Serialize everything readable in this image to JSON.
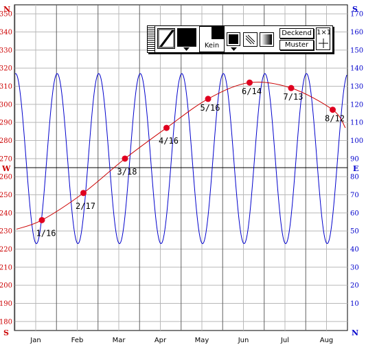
{
  "chart_data": {
    "type": "line",
    "left_axis": {
      "ticks": [
        "350",
        "340",
        "330",
        "320",
        "310",
        "300",
        "290",
        "280",
        "270",
        "260",
        "250",
        "240",
        "230",
        "220",
        "210",
        "200",
        "190",
        "180"
      ],
      "range": [
        175,
        355
      ],
      "top_label": "N",
      "bottom_label": "S",
      "middle_label": "W",
      "middle_value": 265,
      "color": "#cc0000"
    },
    "right_axis": {
      "ticks": [
        "170",
        "160",
        "150",
        "140",
        "130",
        "120",
        "110",
        "100",
        "90",
        "80",
        "70",
        "60",
        "50",
        "40",
        "30",
        "20",
        "10"
      ],
      "range": [
        -5,
        175
      ],
      "top_label": "S",
      "bottom_label": "N",
      "middle_label": "E",
      "color": "#0000cc"
    },
    "months": [
      "Jan",
      "Feb",
      "Mar",
      "Apr",
      "May",
      "Jun",
      "Jul",
      "Aug"
    ],
    "series": [
      {
        "color": "#cc0000",
        "axis": "left",
        "points": [
          {
            "label": "1/16",
            "value": 236
          },
          {
            "label": "2/17",
            "value": 251
          },
          {
            "label": "3/18",
            "value": 270
          },
          {
            "label": "4/16",
            "value": 287
          },
          {
            "label": "5/16",
            "value": 303
          },
          {
            "label": "6/14",
            "value": 312
          },
          {
            "label": "7/13",
            "value": 309
          },
          {
            "label": "8/12",
            "value": 297
          }
        ],
        "end_value": 287
      },
      {
        "color": "#0000cc",
        "axis": "right",
        "oscillation": {
          "max": 137,
          "min": 43,
          "cycles_per_month": 1.0
        }
      }
    ],
    "grid": true
  },
  "palette": {
    "fill_label": "Kein",
    "mode_label": "Deckend",
    "pattern_label": "Muster",
    "size_label": "1×1"
  }
}
